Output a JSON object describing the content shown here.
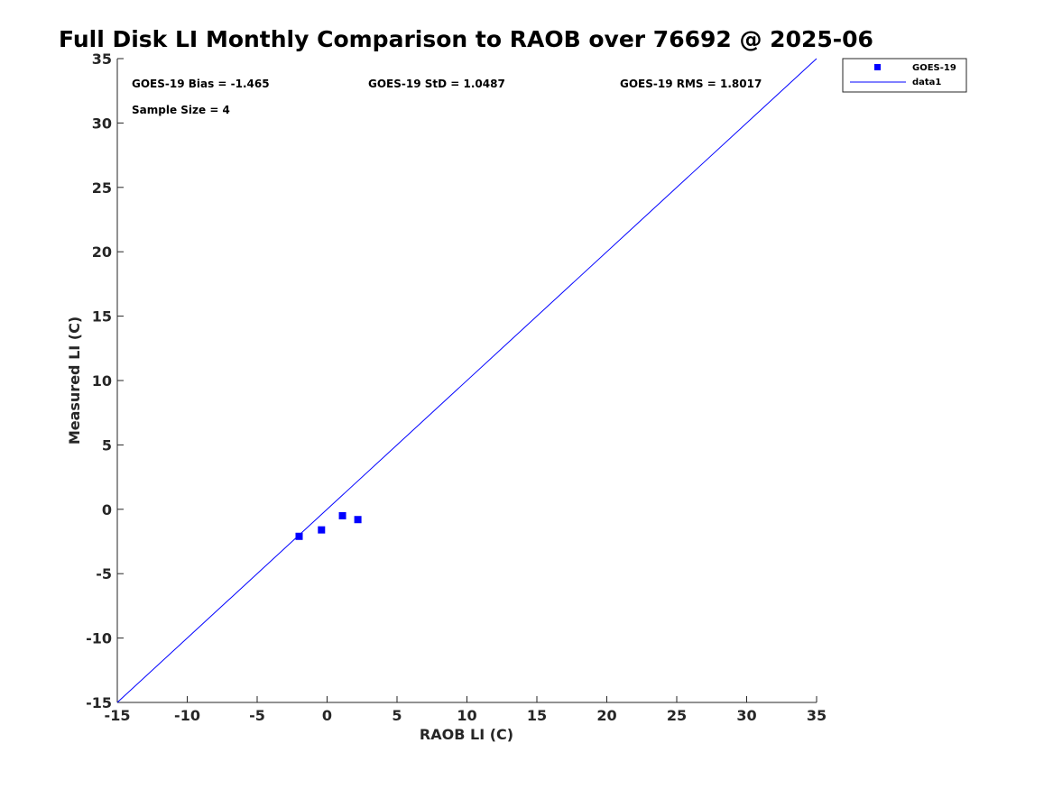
{
  "chart_data": {
    "type": "scatter",
    "title": "Full Disk LI Monthly Comparison to RAOB over 76692 @ 2025-06",
    "xlabel": "RAOB LI (C)",
    "ylabel": "Measured LI (C)",
    "xlim": [
      -15,
      35
    ],
    "ylim": [
      -15,
      35
    ],
    "xticks": [
      -15,
      -10,
      -5,
      0,
      5,
      10,
      15,
      20,
      25,
      30,
      35
    ],
    "yticks": [
      -15,
      -10,
      -5,
      0,
      5,
      10,
      15,
      20,
      25,
      30,
      35
    ],
    "grid": false,
    "legend_position": "outside-top-right",
    "series": [
      {
        "name": "GOES-19",
        "kind": "scatter",
        "marker": "square",
        "color": "#0000ff",
        "points": [
          {
            "x": -2.0,
            "y": -2.1
          },
          {
            "x": -0.4,
            "y": -1.6
          },
          {
            "x": 1.1,
            "y": -0.5
          },
          {
            "x": 2.2,
            "y": -0.8
          }
        ]
      },
      {
        "name": "data1",
        "kind": "line",
        "color": "#0000ff",
        "points": [
          {
            "x": -15,
            "y": -15
          },
          {
            "x": 35,
            "y": 35
          }
        ]
      }
    ],
    "annotations": {
      "bias": "GOES-19 Bias = -1.465",
      "std": "GOES-19 StD = 1.0487",
      "rms": "GOES-19 RMS = 1.8017",
      "sample_size": "Sample Size = 4"
    }
  }
}
